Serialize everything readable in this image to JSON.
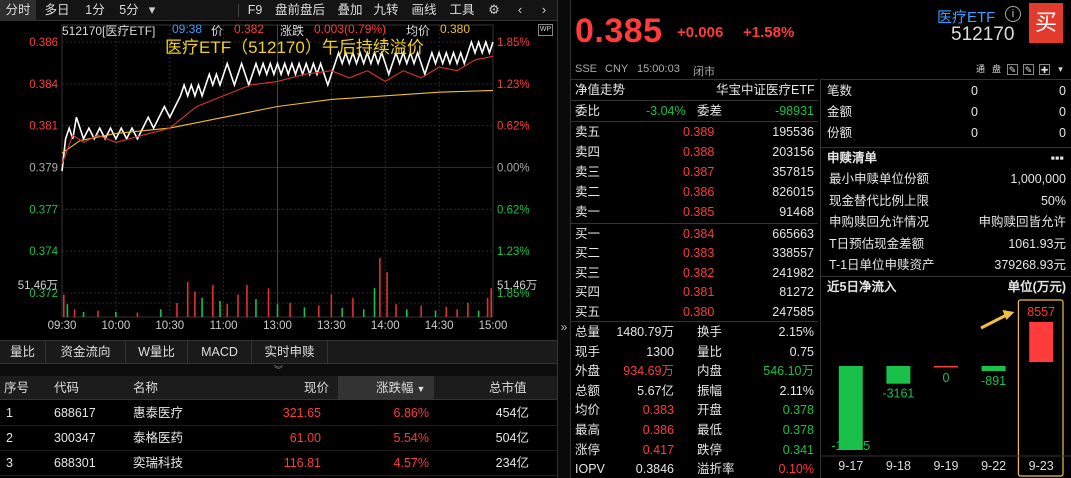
{
  "toolbar": {
    "tabs": [
      "分时",
      "多日",
      "1分",
      "5分"
    ],
    "dropdown_icon": "chevron-down-icon",
    "items": [
      "F9",
      "盘前盘后",
      "叠加",
      "九转",
      "画线",
      "工具"
    ],
    "settings_icon": "gear-icon",
    "nav_icons": [
      "chevron-left-icon",
      "chevron-right-icon"
    ]
  },
  "chart_header": {
    "code_name": "512170[医疗ETF]",
    "time": "09:38",
    "price_label": "价",
    "price": "0.382",
    "change_label": "涨跌",
    "change": "0.003(0.79%)",
    "avg_label": "均价",
    "avg": "0.380",
    "wp_badge": "WP"
  },
  "chart_data": {
    "type": "line",
    "title": "医疗ETF（512170）午后持续溢价",
    "y_ticks_left": [
      "0.386",
      "0.384",
      "0.381",
      "0.379",
      "0.377",
      "0.374",
      "0.372"
    ],
    "y_ticks_right": [
      "1.85%",
      "1.23%",
      "0.62%",
      "0.00%",
      "0.62%",
      "1.23%",
      "1.85%"
    ],
    "volume_label_left": "51.46万",
    "volume_label_right": "51.46万",
    "x_ticks": [
      "09:30",
      "10:00",
      "10:30",
      "11:00",
      "13:00",
      "13:30",
      "14:00",
      "14:30",
      "15:00"
    ],
    "ylim": [
      0.372,
      0.386
    ],
    "prev_close": 0.379,
    "series": [
      {
        "name": "价",
        "color": "#ffffff",
        "points": [
          [
            0,
            0.3788
          ],
          [
            2,
            0.3806
          ],
          [
            4,
            0.3812
          ],
          [
            6,
            0.3806
          ],
          [
            8,
            0.3818
          ],
          [
            10,
            0.3812
          ],
          [
            12,
            0.3806
          ],
          [
            15,
            0.3812
          ],
          [
            18,
            0.3806
          ],
          [
            21,
            0.3812
          ],
          [
            24,
            0.3806
          ],
          [
            27,
            0.3812
          ],
          [
            30,
            0.3806
          ],
          [
            33,
            0.3812
          ],
          [
            36,
            0.3806
          ],
          [
            39,
            0.3812
          ],
          [
            42,
            0.3806
          ],
          [
            45,
            0.3812
          ],
          [
            48,
            0.3818
          ],
          [
            51,
            0.3812
          ],
          [
            54,
            0.3818
          ],
          [
            57,
            0.3824
          ],
          [
            60,
            0.3818
          ],
          [
            63,
            0.3824
          ],
          [
            66,
            0.383
          ],
          [
            68,
            0.3836
          ],
          [
            70,
            0.383
          ],
          [
            72,
            0.3836
          ],
          [
            74,
            0.383
          ],
          [
            76,
            0.3836
          ],
          [
            78,
            0.383
          ],
          [
            80,
            0.3836
          ],
          [
            82,
            0.3842
          ],
          [
            84,
            0.3836
          ],
          [
            86,
            0.3842
          ],
          [
            88,
            0.3836
          ],
          [
            90,
            0.3842
          ],
          [
            92,
            0.3848
          ],
          [
            94,
            0.3842
          ],
          [
            96,
            0.3836
          ],
          [
            98,
            0.3842
          ],
          [
            100,
            0.3848
          ],
          [
            102,
            0.3842
          ],
          [
            104,
            0.3836
          ],
          [
            106,
            0.3842
          ],
          [
            108,
            0.3848
          ],
          [
            110,
            0.3842
          ],
          [
            112,
            0.3848
          ],
          [
            114,
            0.3842
          ],
          [
            116,
            0.3848
          ],
          [
            118,
            0.3842
          ],
          [
            120,
            0.3848
          ],
          [
            122,
            0.3842
          ],
          [
            124,
            0.3848
          ],
          [
            126,
            0.3842
          ],
          [
            128,
            0.3848
          ],
          [
            130,
            0.3842
          ],
          [
            132,
            0.3848
          ],
          [
            134,
            0.3842
          ],
          [
            136,
            0.3848
          ],
          [
            138,
            0.3842
          ],
          [
            140,
            0.3848
          ],
          [
            142,
            0.3842
          ],
          [
            144,
            0.3848
          ],
          [
            146,
            0.3842
          ],
          [
            148,
            0.3836
          ],
          [
            150,
            0.3842
          ],
          [
            152,
            0.3848
          ],
          [
            154,
            0.3854
          ],
          [
            156,
            0.3848
          ],
          [
            158,
            0.3854
          ],
          [
            160,
            0.3848
          ],
          [
            162,
            0.3854
          ],
          [
            164,
            0.3848
          ],
          [
            166,
            0.3854
          ],
          [
            168,
            0.3848
          ],
          [
            170,
            0.3854
          ],
          [
            172,
            0.3848
          ],
          [
            174,
            0.3854
          ],
          [
            176,
            0.3848
          ],
          [
            178,
            0.3854
          ],
          [
            180,
            0.3848
          ],
          [
            182,
            0.3842
          ],
          [
            184,
            0.3848
          ],
          [
            186,
            0.3854
          ],
          [
            188,
            0.3848
          ],
          [
            190,
            0.3854
          ],
          [
            192,
            0.3848
          ],
          [
            194,
            0.3854
          ],
          [
            196,
            0.3848
          ],
          [
            198,
            0.3854
          ],
          [
            200,
            0.3848
          ],
          [
            202,
            0.3842
          ],
          [
            204,
            0.3848
          ],
          [
            206,
            0.3854
          ],
          [
            208,
            0.3848
          ],
          [
            210,
            0.3854
          ],
          [
            212,
            0.3848
          ],
          [
            214,
            0.3854
          ],
          [
            216,
            0.3848
          ],
          [
            218,
            0.3854
          ],
          [
            220,
            0.3848
          ],
          [
            222,
            0.3854
          ],
          [
            224,
            0.3848
          ],
          [
            226,
            0.3854
          ],
          [
            228,
            0.386
          ],
          [
            230,
            0.3854
          ],
          [
            232,
            0.386
          ],
          [
            234,
            0.3854
          ],
          [
            236,
            0.386
          ],
          [
            238,
            0.3854
          ],
          [
            240,
            0.386
          ]
        ]
      },
      {
        "name": "均价",
        "color": "#f0c020",
        "points": [
          [
            0,
            0.3798
          ],
          [
            10,
            0.3805
          ],
          [
            30,
            0.3809
          ],
          [
            60,
            0.3812
          ],
          [
            90,
            0.3818
          ],
          [
            120,
            0.3824
          ],
          [
            150,
            0.3828
          ],
          [
            180,
            0.383
          ],
          [
            210,
            0.3832
          ],
          [
            240,
            0.3833
          ]
        ]
      },
      {
        "name": "净值",
        "color": "#e03030",
        "points": [
          [
            0,
            0.3792
          ],
          [
            6,
            0.3808
          ],
          [
            12,
            0.3804
          ],
          [
            20,
            0.3808
          ],
          [
            30,
            0.3804
          ],
          [
            45,
            0.3808
          ],
          [
            60,
            0.3812
          ],
          [
            75,
            0.3824
          ],
          [
            90,
            0.383
          ],
          [
            105,
            0.3836
          ],
          [
            120,
            0.3838
          ],
          [
            135,
            0.3842
          ],
          [
            150,
            0.3844
          ],
          [
            160,
            0.384
          ],
          [
            170,
            0.3844
          ],
          [
            180,
            0.3838
          ],
          [
            190,
            0.3844
          ],
          [
            200,
            0.384
          ],
          [
            210,
            0.3846
          ],
          [
            220,
            0.3844
          ],
          [
            230,
            0.385
          ],
          [
            240,
            0.3852
          ]
        ]
      }
    ],
    "volume": [
      {
        "t": 1,
        "v": 0.35,
        "c": "r"
      },
      {
        "t": 3,
        "v": 0.2,
        "c": "g"
      },
      {
        "t": 7,
        "v": 0.12,
        "c": "r"
      },
      {
        "t": 12,
        "v": 0.08,
        "c": "g"
      },
      {
        "t": 20,
        "v": 0.1,
        "c": "r"
      },
      {
        "t": 30,
        "v": 0.08,
        "c": "g"
      },
      {
        "t": 42,
        "v": 0.07,
        "c": "r"
      },
      {
        "t": 55,
        "v": 0.12,
        "c": "g"
      },
      {
        "t": 64,
        "v": 0.22,
        "c": "r"
      },
      {
        "t": 70,
        "v": 0.55,
        "c": "r"
      },
      {
        "t": 74,
        "v": 0.4,
        "c": "r"
      },
      {
        "t": 78,
        "v": 0.3,
        "c": "g"
      },
      {
        "t": 84,
        "v": 0.5,
        "c": "r"
      },
      {
        "t": 88,
        "v": 0.25,
        "c": "g"
      },
      {
        "t": 92,
        "v": 0.2,
        "c": "r"
      },
      {
        "t": 98,
        "v": 0.35,
        "c": "r"
      },
      {
        "t": 103,
        "v": 0.5,
        "c": "r"
      },
      {
        "t": 108,
        "v": 0.28,
        "c": "g"
      },
      {
        "t": 115,
        "v": 0.45,
        "c": "r"
      },
      {
        "t": 120,
        "v": 0.2,
        "c": "g"
      },
      {
        "t": 127,
        "v": 0.22,
        "c": "r"
      },
      {
        "t": 135,
        "v": 0.15,
        "c": "g"
      },
      {
        "t": 143,
        "v": 0.18,
        "c": "r"
      },
      {
        "t": 150,
        "v": 0.35,
        "c": "r"
      },
      {
        "t": 156,
        "v": 0.14,
        "c": "g"
      },
      {
        "t": 162,
        "v": 0.3,
        "c": "r"
      },
      {
        "t": 168,
        "v": 0.12,
        "c": "g"
      },
      {
        "t": 174,
        "v": 0.45,
        "c": "g"
      },
      {
        "t": 177,
        "v": 0.92,
        "c": "r"
      },
      {
        "t": 181,
        "v": 0.7,
        "c": "r"
      },
      {
        "t": 186,
        "v": 0.2,
        "c": "r"
      },
      {
        "t": 192,
        "v": 0.12,
        "c": "g"
      },
      {
        "t": 200,
        "v": 0.18,
        "c": "r"
      },
      {
        "t": 208,
        "v": 0.1,
        "c": "g"
      },
      {
        "t": 214,
        "v": 0.16,
        "c": "r"
      },
      {
        "t": 220,
        "v": 0.12,
        "c": "r"
      },
      {
        "t": 226,
        "v": 0.22,
        "c": "r"
      },
      {
        "t": 232,
        "v": 0.1,
        "c": "g"
      },
      {
        "t": 237,
        "v": 0.3,
        "c": "r"
      },
      {
        "t": 239,
        "v": 0.45,
        "c": "r"
      }
    ]
  },
  "bottom_tabs": [
    "量比",
    "资金流向",
    "W量比",
    "MACD",
    "实时申赎"
  ],
  "expand_icon": "double-chevron-down-icon",
  "stock_table": {
    "headers": [
      "序号",
      "代码",
      "名称",
      "现价",
      "涨跌幅",
      "总市值"
    ],
    "sort_icon": "sort-down-icon",
    "rows": [
      [
        "1",
        "688617",
        "惠泰医疗",
        "321.65",
        "6.86%",
        "454亿"
      ],
      [
        "2",
        "300347",
        "泰格医药",
        "61.00",
        "5.54%",
        "504亿"
      ],
      [
        "3",
        "688301",
        "奕瑞科技",
        "116.81",
        "4.57%",
        "234亿"
      ]
    ]
  },
  "divider_icons": [
    "double-chevron-right-icon"
  ],
  "quote": {
    "price": "0.385",
    "change": "+0.006",
    "change_pct": "+1.58%",
    "name": "医疗ETF",
    "code": "512170",
    "buy_label": "买",
    "exchange": "SSE",
    "currency": "CNY",
    "time": "15:00:03",
    "status": "闭市",
    "tool_icons": [
      "通",
      "盘",
      "✎",
      "✎",
      "✚",
      "▾"
    ]
  },
  "orderbook": {
    "nav_title": "净值走势",
    "nav_index": "华宝中证医疗ETF",
    "weibi_label": "委比",
    "weibi": "-3.04%",
    "weicha_label": "委差",
    "weicha": "-98931",
    "asks": [
      [
        "卖五",
        "0.389",
        "195536"
      ],
      [
        "卖四",
        "0.388",
        "203156"
      ],
      [
        "卖三",
        "0.387",
        "357815"
      ],
      [
        "卖二",
        "0.386",
        "826015"
      ],
      [
        "卖一",
        "0.385",
        "91468"
      ]
    ],
    "bids": [
      [
        "买一",
        "0.384",
        "665663"
      ],
      [
        "买二",
        "0.383",
        "338557"
      ],
      [
        "买三",
        "0.382",
        "241982"
      ],
      [
        "买四",
        "0.381",
        "81272"
      ],
      [
        "买五",
        "0.380",
        "247585"
      ]
    ],
    "stats": [
      [
        "总量",
        "1480.79万",
        "换手",
        "2.15%"
      ],
      [
        "现手",
        "1300",
        "量比",
        "0.75"
      ],
      [
        "外盘",
        "934.69万",
        "内盘",
        "546.10万"
      ],
      [
        "总额",
        "5.67亿",
        "振幅",
        "2.11%"
      ],
      [
        "均价",
        "0.383",
        "开盘",
        "0.378"
      ],
      [
        "最高",
        "0.386",
        "最低",
        "0.378"
      ],
      [
        "涨停",
        "0.417",
        "跌停",
        "0.341"
      ],
      [
        "IOPV",
        "0.3846",
        "溢折率",
        "0.10%"
      ]
    ]
  },
  "positions": [
    [
      "笔数",
      "0",
      "0"
    ],
    [
      "金额",
      "0",
      "0"
    ],
    [
      "份额",
      "0",
      "0"
    ]
  ],
  "subscribe": {
    "title": "申赎清单",
    "menu_icon": "more-icon",
    "rows": [
      [
        "最小申赎单位份额",
        "1,000,000"
      ],
      [
        "现金替代比例上限",
        "50%"
      ],
      [
        "申购赎回允许情况",
        "申购赎回皆允许"
      ],
      [
        "T日预估现金差额",
        "1061.93元"
      ],
      [
        "T-1日单位申赎资产",
        "379268.93元"
      ]
    ]
  },
  "flow_chart": {
    "title": "近5日净流入",
    "unit": "单位(万元)",
    "chart_data": {
      "type": "bar",
      "categories": [
        "9-17",
        "9-18",
        "9-19",
        "9-22",
        "9-23"
      ],
      "values": [
        -14975,
        -3161,
        0,
        -891,
        8557
      ],
      "labels": [
        "-14975",
        "-3161",
        "0",
        "-891",
        "8557"
      ]
    },
    "pos_color": "#ff3b3b",
    "neg_color": "#19c04a",
    "highlight_color": "#f0c040"
  }
}
